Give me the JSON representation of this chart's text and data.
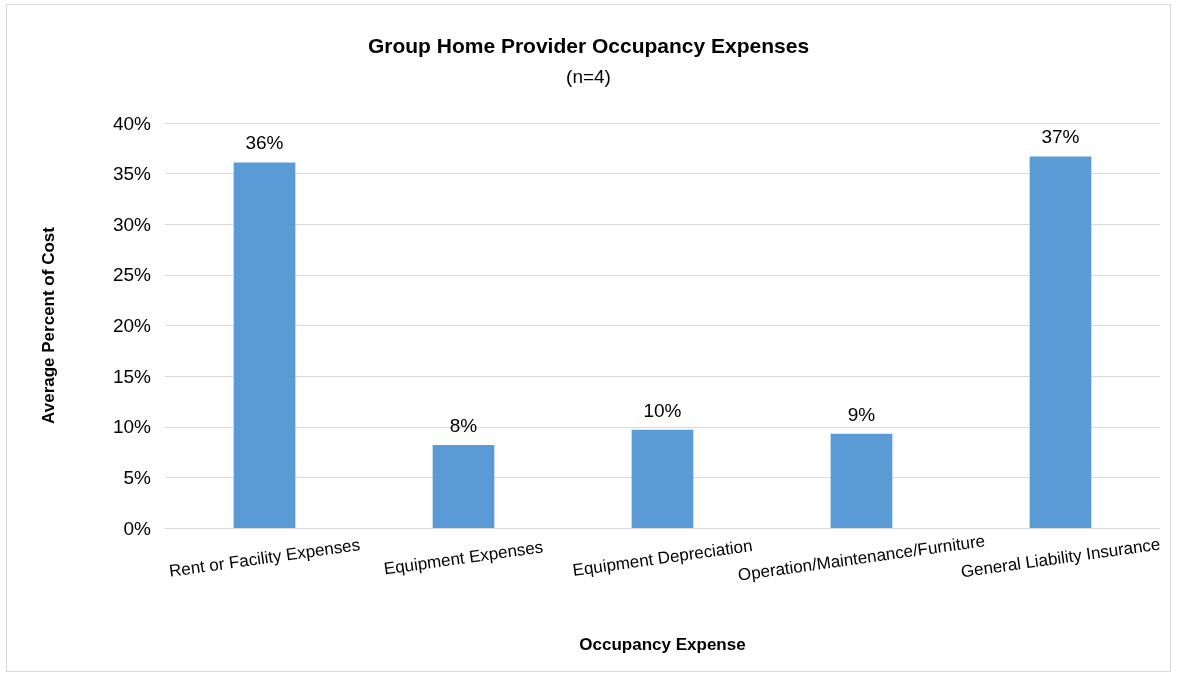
{
  "chart_data": {
    "type": "bar",
    "title": "Group Home Provider Occupancy Expenses",
    "subtitle": "(n=4)",
    "xlabel": "Occupancy Expense",
    "ylabel": "Average Percent of Cost",
    "categories": [
      "Rent or Facility Expenses",
      "Equipment Expenses",
      "Equipment Depreciation",
      "Operation/Maintenance/Furniture",
      "General Liability Insurance"
    ],
    "values": [
      36.1,
      8.2,
      9.7,
      9.3,
      36.7
    ],
    "value_labels": [
      "36%",
      "8%",
      "10%",
      "9%",
      "37%"
    ],
    "color": "#5b9bd5",
    "ylim": [
      0,
      40
    ],
    "yticks": [
      {
        "value": 0,
        "label": "0%"
      },
      {
        "value": 5,
        "label": "5%"
      },
      {
        "value": 10,
        "label": "10%"
      },
      {
        "value": 15,
        "label": "15%"
      },
      {
        "value": 20,
        "label": "20%"
      },
      {
        "value": 25,
        "label": "25%"
      },
      {
        "value": 30,
        "label": "30%"
      },
      {
        "value": 35,
        "label": "35%"
      },
      {
        "value": 40,
        "label": "40%"
      }
    ],
    "grid": "y"
  }
}
